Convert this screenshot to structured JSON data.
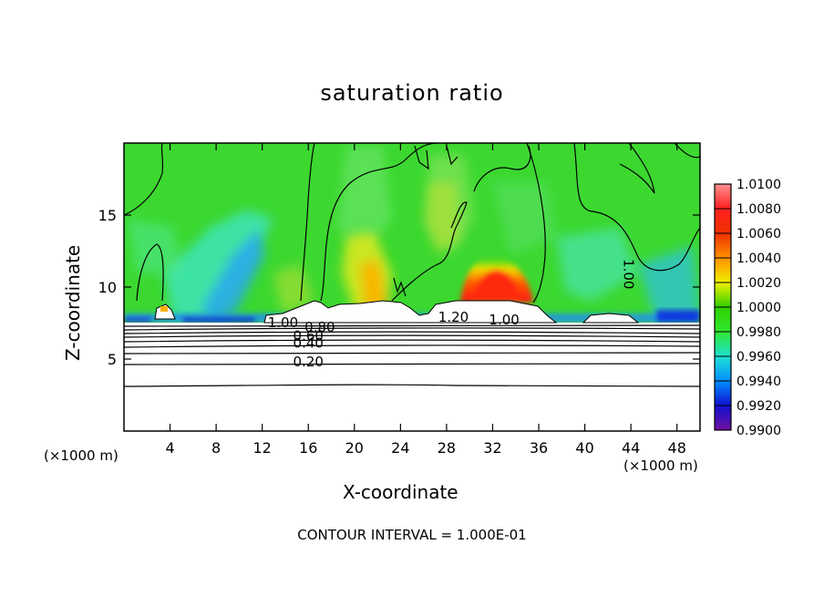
{
  "chart_data": {
    "type": "heatmap",
    "title": "saturation ratio",
    "xlabel": "X-coordinate",
    "ylabel": "Z-coordinate",
    "x_unit_left": "(×1000 m)",
    "x_unit_right": "(×1000 m)",
    "xlim": [
      0,
      50
    ],
    "ylim": [
      0,
      20
    ],
    "xticks": [
      "4",
      "8",
      "12",
      "16",
      "20",
      "24",
      "28",
      "32",
      "36",
      "40",
      "44",
      "48"
    ],
    "xtick_values": [
      4,
      8,
      12,
      16,
      20,
      24,
      28,
      32,
      36,
      40,
      44,
      48
    ],
    "yticks": [
      "5",
      "10",
      "15"
    ],
    "ytick_values": [
      5,
      10,
      15
    ],
    "colorbar": {
      "labels": [
        "1.0100",
        "1.0080",
        "1.0060",
        "1.0040",
        "1.0020",
        "1.0000",
        "0.9980",
        "0.9960",
        "0.9940",
        "0.9920",
        "0.9900"
      ],
      "colors": [
        "#ff9090",
        "#ff2020",
        "#f03000",
        "#ff9000",
        "#f0f000",
        "#30d000",
        "#30e830",
        "#20e0d0",
        "#0090ff",
        "#1010d0",
        "#7010a0"
      ]
    },
    "contour_labels": [
      {
        "text": "1.00",
        "x": 43.4,
        "y": 10.9,
        "rotate": 90
      },
      {
        "text": "1.20",
        "x": 28.6,
        "y": 7.6
      },
      {
        "text": "1.00",
        "x": 33.0,
        "y": 7.4
      },
      {
        "text": "1.00",
        "x": 13.8,
        "y": 7.2
      },
      {
        "text": "0.80",
        "x": 17.0,
        "y": 6.9
      },
      {
        "text": "0.60",
        "x": 16.0,
        "y": 6.3
      },
      {
        "text": "0.40",
        "x": 16.0,
        "y": 5.8
      },
      {
        "text": "0.20",
        "x": 16.0,
        "y": 4.5
      }
    ],
    "contour_interval_text": "CONTOUR INTERVAL = 1.000E-01"
  }
}
